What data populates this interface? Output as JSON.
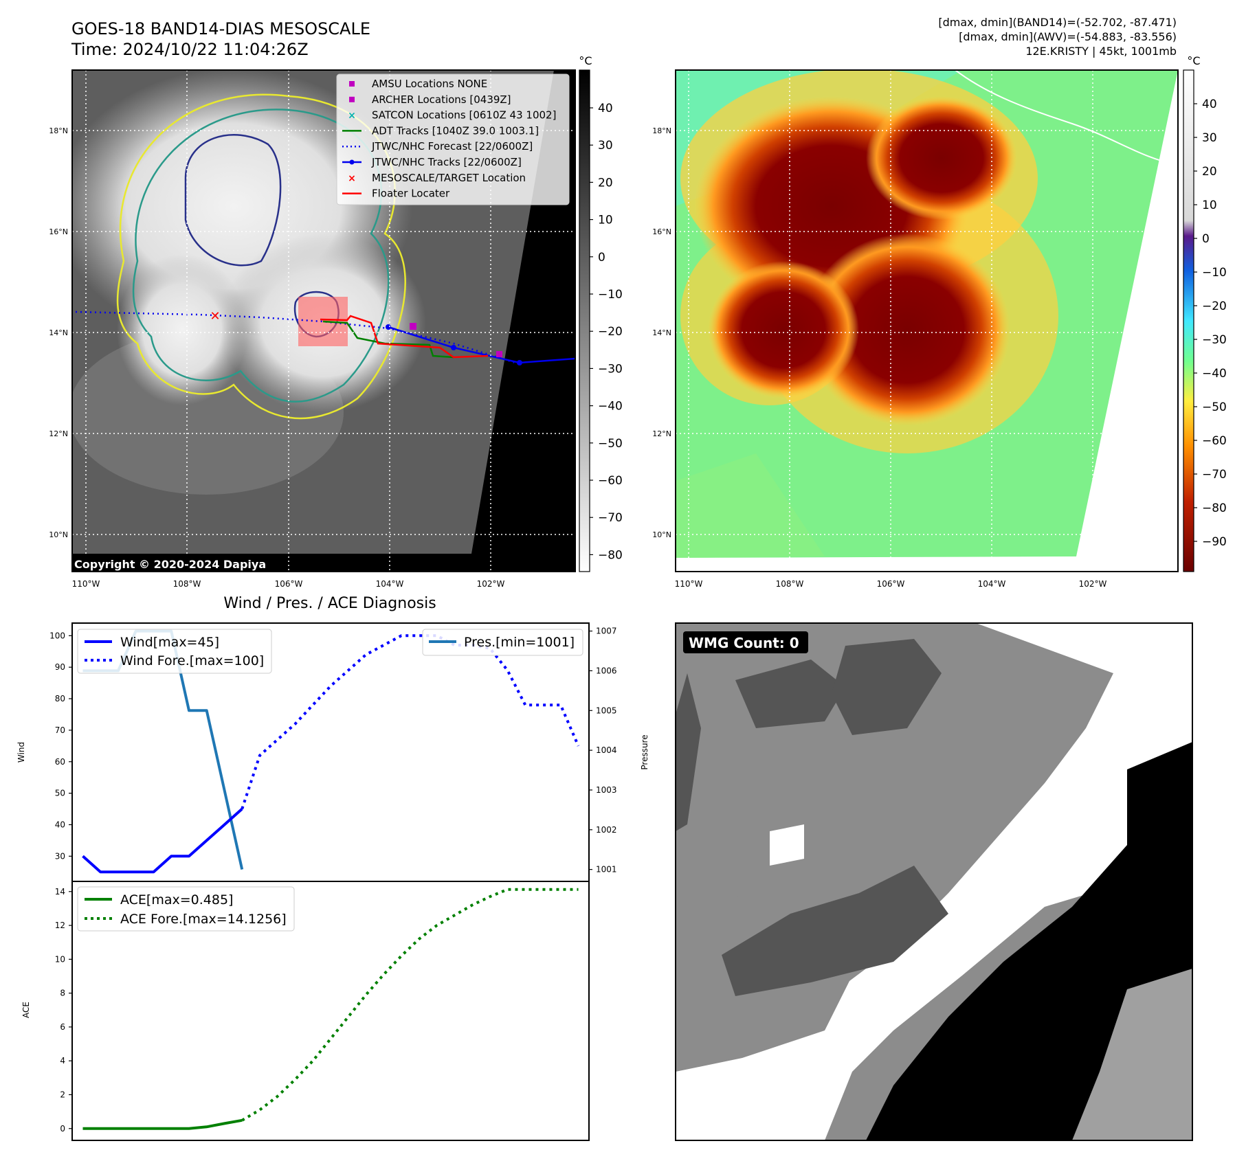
{
  "header": {
    "title_line1": "GOES-18 BAND14-DIAS MESOSCALE",
    "title_line2": "Time: 2024/10/22 11:04:26Z",
    "info_line1": "[dmax, dmin](BAND14)=(-52.702, -87.471)",
    "info_line2": "[dmax, dmin](AWV)=(-54.883, -83.556)",
    "info_line3": "12E.KRISTY | 45kt, 1001mb"
  },
  "ir_map": {
    "lat_labels": [
      "18°N",
      "16°N",
      "14°N",
      "12°N",
      "10°N"
    ],
    "lon_labels": [
      "110°W",
      "108°W",
      "106°W",
      "104°W",
      "102°W"
    ],
    "colorbar_unit": "°C",
    "colorbar_ticks": [
      "40",
      "30",
      "20",
      "10",
      "0",
      "−10",
      "−20",
      "−30",
      "−40",
      "−50",
      "−60",
      "−70",
      "−80"
    ],
    "copyright": "Copyright © 2020-2024 Dapiya",
    "legend": [
      {
        "label": "AMSU Locations NONE",
        "color": "#c000c0",
        "marker": "square"
      },
      {
        "label": "ARCHER Locations [0439Z]",
        "color": "#c000c0",
        "marker": "square"
      },
      {
        "label": "SATCON Locations [0610Z 43 1002]",
        "color": "#00b0b0",
        "marker": "x"
      },
      {
        "label": "ADT Tracks [1040Z 39.0 1003.1]",
        "color": "#008000",
        "marker": "line"
      },
      {
        "label": "JTWC/NHC Forecast [22/0600Z]",
        "color": "#0000ee",
        "marker": "dotted"
      },
      {
        "label": "JTWC/NHC Tracks [22/0600Z]",
        "color": "#0000ee",
        "marker": "line-dot"
      },
      {
        "label": "MESOSCALE/TARGET Location",
        "color": "#ff0000",
        "marker": "x"
      },
      {
        "label": "Floater Locater",
        "color": "#ff0000",
        "marker": "line"
      }
    ]
  },
  "color_map": {
    "lat_labels": [
      "18°N",
      "16°N",
      "14°N",
      "12°N",
      "10°N"
    ],
    "lon_labels": [
      "110°W",
      "108°W",
      "106°W",
      "104°W",
      "102°W"
    ],
    "colorbar_unit": "°C",
    "colorbar_ticks": [
      "40",
      "30",
      "20",
      "10",
      "0",
      "−10",
      "−20",
      "−30",
      "−40",
      "−50",
      "−60",
      "−70",
      "−80",
      "−90"
    ]
  },
  "wmg": {
    "label": "WMG Count: 0"
  },
  "chart_data": [
    {
      "type": "line",
      "title": "Wind / Pres. / ACE Diagnosis",
      "ylabel": "Wind",
      "ylabel_right": "Pressure",
      "ylim": [
        22,
        104
      ],
      "ylim_right": [
        1000.7,
        1007.2
      ],
      "xlim": [
        -0.6,
        28.6
      ],
      "yticks": [
        30,
        40,
        50,
        60,
        70,
        80,
        90,
        100
      ],
      "yticks_right": [
        1001,
        1002,
        1003,
        1004,
        1005,
        1006,
        1007
      ],
      "series": [
        {
          "name": "Wind[max=45]",
          "style": "solid",
          "color": "#0000ff",
          "x": [
            0,
            1,
            2,
            3,
            4,
            5,
            6,
            7,
            8,
            9
          ],
          "values": [
            30,
            25,
            25,
            25,
            25,
            30,
            30,
            35,
            40,
            45
          ]
        },
        {
          "name": "Wind Fore.[max=100]",
          "style": "dotted",
          "color": "#0000ff",
          "x": [
            9,
            10,
            11,
            12,
            13,
            14,
            15,
            16,
            17,
            18,
            19,
            20,
            21,
            22,
            23,
            24,
            25,
            26,
            27,
            28
          ],
          "values": [
            45,
            62,
            67,
            72,
            78,
            84,
            89,
            94,
            97,
            100,
            100,
            100,
            97,
            97,
            96,
            89,
            78,
            78,
            78,
            65
          ]
        },
        {
          "name": "Pres.[min=1001]",
          "style": "solid",
          "color": "#1f77b4",
          "axis": "right",
          "x": [
            0,
            1,
            2,
            3,
            4,
            5,
            6,
            7,
            8,
            9
          ],
          "values": [
            1006,
            1006,
            1006,
            1007,
            1007,
            1007,
            1005,
            1005,
            1003,
            1001
          ]
        }
      ]
    },
    {
      "type": "line",
      "ylabel": "ACE",
      "ylim": [
        -0.7,
        14.6
      ],
      "xlim": [
        -0.6,
        28.6
      ],
      "yticks": [
        0,
        2,
        4,
        6,
        8,
        10,
        12,
        14
      ],
      "series": [
        {
          "name": "ACE[max=0.485]",
          "style": "solid",
          "color": "#008000",
          "x": [
            0,
            1,
            2,
            3,
            4,
            5,
            6,
            7,
            8,
            9
          ],
          "values": [
            0,
            0,
            0,
            0,
            0,
            0,
            0,
            0.1,
            0.3,
            0.485
          ]
        },
        {
          "name": "ACE Fore.[max=14.1256]",
          "style": "dotted",
          "color": "#008000",
          "x": [
            9,
            10,
            11,
            12,
            13,
            14,
            15,
            16,
            17,
            18,
            19,
            20,
            21,
            22,
            23,
            24,
            25,
            26,
            27,
            28
          ],
          "values": [
            0.485,
            1.1,
            1.9,
            2.9,
            4.0,
            5.3,
            6.6,
            7.9,
            9.1,
            10.2,
            11.2,
            12.0,
            12.6,
            13.2,
            13.7,
            14.1256,
            14.1256,
            14.1256,
            14.1256,
            14.1256
          ]
        }
      ]
    }
  ]
}
